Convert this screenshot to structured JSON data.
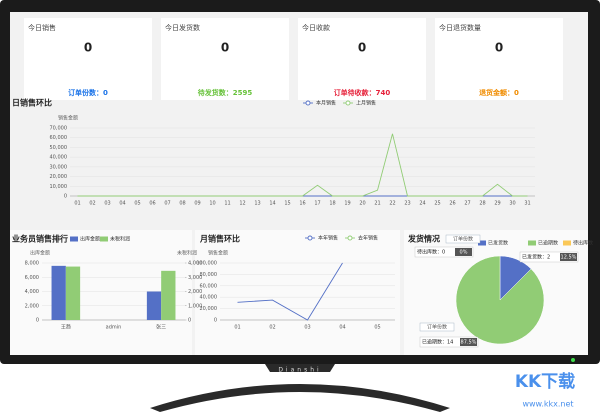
{
  "screen_brand": "Dianshi",
  "watermark": {
    "logo": "KK下载",
    "url": "www.kkx.net"
  },
  "cards": [
    {
      "title": "今日销售",
      "value": 0,
      "footer": "订单份数：0",
      "color": "#1a73e8"
    },
    {
      "title": "今日发货数",
      "value": 0,
      "footer": "待发货数：2595",
      "color": "#67c23a"
    },
    {
      "title": "今日收款",
      "value": 0,
      "footer": "订单待收款：740",
      "color": "#e6213a"
    },
    {
      "title": "今日退货数量",
      "value": 0,
      "footer": "退货金额：0",
      "color": "#f08c00"
    }
  ],
  "chart_data": [
    {
      "type": "line",
      "title": "日销售环比",
      "y_axis_label": "销售金额",
      "x": [
        "01",
        "02",
        "03",
        "04",
        "05",
        "06",
        "07",
        "08",
        "09",
        "10",
        "11",
        "12",
        "13",
        "14",
        "15",
        "16",
        "17",
        "18",
        "19",
        "20",
        "21",
        "22",
        "23",
        "24",
        "25",
        "26",
        "27",
        "28",
        "29",
        "30",
        "31"
      ],
      "series": [
        {
          "name": "本月销售",
          "color": "#5470c6",
          "values": [
            0,
            0,
            0,
            0,
            0,
            0,
            0,
            0,
            0,
            0,
            0,
            0,
            0,
            0,
            0,
            0,
            0,
            0,
            0,
            0,
            0,
            0,
            0,
            0,
            0,
            0,
            0,
            0,
            0,
            0,
            0
          ]
        },
        {
          "name": "上月销售",
          "color": "#91cc75",
          "values": [
            0,
            0,
            0,
            0,
            0,
            0,
            0,
            0,
            0,
            0,
            0,
            0,
            0,
            0,
            0,
            0,
            11000,
            0,
            0,
            0,
            6000,
            64000,
            0,
            0,
            0,
            0,
            0,
            0,
            12000,
            0,
            0
          ]
        }
      ],
      "ylim": [
        0,
        70000
      ],
      "yticks": [
        0,
        {
          "value": 10000,
          "label": "10,000"
        },
        {
          "value": 20000,
          "label": "20,000"
        },
        {
          "value": 30000,
          "label": "30,000"
        },
        {
          "value": 40000,
          "label": "40,000"
        },
        {
          "value": 50000,
          "label": "50,000"
        },
        {
          "value": 60000,
          "label": "60,000"
        },
        {
          "value": 70000,
          "label": "70,000"
        }
      ],
      "grid": true
    },
    {
      "type": "bar",
      "title": "业务员销售排行",
      "y_axis_label": "出库金额",
      "y2_axis_label": "未税利润",
      "categories": [
        "王趋",
        "admin",
        "张三"
      ],
      "series": [
        {
          "name": "出库金额",
          "color": "#5470c6",
          "values": [
            7600,
            0,
            4000
          ]
        },
        {
          "name": "未税利润",
          "color": "#91cc75",
          "axis": "y2",
          "values": [
            3750,
            0,
            3450
          ]
        }
      ],
      "ylim": [
        0,
        8000
      ],
      "yticks": [
        0,
        {
          "value": 2000,
          "label": "2,000"
        },
        {
          "value": 4000,
          "label": "4,000"
        },
        {
          "value": 6000,
          "label": "6,000"
        },
        {
          "value": 8000,
          "label": "8,000"
        }
      ],
      "y2lim": [
        0,
        4000
      ],
      "y2ticks": [
        0,
        {
          "value": 1000,
          "label": "1,000"
        },
        {
          "value": 2000,
          "label": "2,000"
        },
        {
          "value": 3000,
          "label": "3,000"
        },
        {
          "value": 4000,
          "label": "4,000"
        }
      ],
      "grid": true
    },
    {
      "type": "line",
      "title": "月销售环比",
      "y_axis_label": "销售金额",
      "x": [
        "01",
        "02",
        "03",
        "04",
        "05"
      ],
      "series": [
        {
          "name": "本年销售",
          "color": "#5470c6",
          "values": [
            31000,
            35000,
            0,
            100000,
            null
          ]
        },
        {
          "name": "去年销售",
          "color": "#91cc75",
          "values": [
            null,
            null,
            null,
            null,
            null
          ]
        }
      ],
      "ylim": [
        0,
        100000
      ],
      "yticks": [
        0,
        {
          "value": 20000,
          "label": "20,000"
        },
        {
          "value": 40000,
          "label": "40,000"
        },
        {
          "value": 60000,
          "label": "60,000"
        },
        {
          "value": 80000,
          "label": "80,000"
        },
        {
          "value": 100000,
          "label": "100,000"
        }
      ],
      "grid": true
    },
    {
      "type": "pie",
      "title": "发货情况",
      "callout_title": "订单份数",
      "categories": [
        "已发货数",
        "已逾期数",
        "待出库数"
      ],
      "colors": [
        "#5470c6",
        "#91cc75",
        "#fac858"
      ],
      "values": [
        12.5,
        87.5,
        0
      ],
      "value_labels": [
        "12.5%",
        "87.5%",
        "0%"
      ],
      "callouts": [
        "已发货数：2",
        "已逾期数：14",
        "待出库数：0"
      ]
    }
  ]
}
